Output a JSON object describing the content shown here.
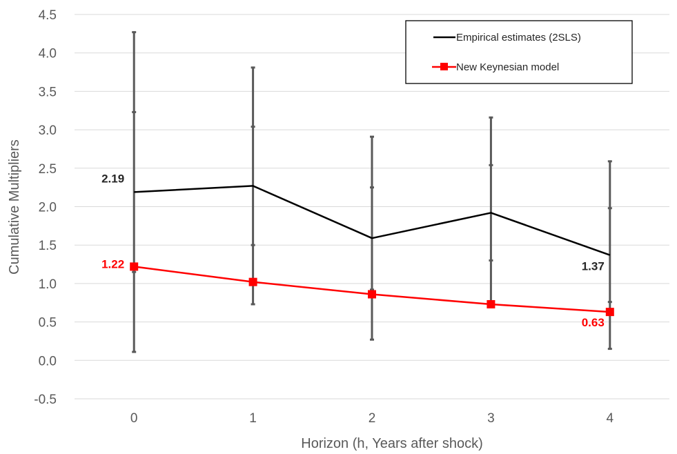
{
  "chart_data": {
    "type": "line",
    "title": "",
    "xlabel": "Horizon (h, Years after shock)",
    "ylabel": "Cumulative Multipliers",
    "categories": [
      "0",
      "1",
      "2",
      "3",
      "4"
    ],
    "ylim": [
      -0.5,
      4.5
    ],
    "ytick_labels": [
      "-0.5",
      "0.0",
      "0.5",
      "1.0",
      "1.5",
      "2.0",
      "2.5",
      "3.0",
      "3.5",
      "4.0",
      "4.5"
    ],
    "grid": true,
    "legend_position": "top-right",
    "series": [
      {
        "name": "Empirical estimates (2SLS)",
        "color": "#000000",
        "marker": "none",
        "values": [
          2.19,
          2.27,
          1.59,
          1.92,
          1.37
        ],
        "error_bars": {
          "outer_low": [
            0.11,
            0.73,
            0.27,
            0.69,
            0.15
          ],
          "outer_high": [
            4.27,
            3.81,
            2.91,
            3.16,
            2.59
          ],
          "inner_low": [
            1.15,
            1.5,
            0.92,
            1.3,
            0.76
          ],
          "inner_high": [
            3.23,
            3.04,
            2.25,
            2.54,
            1.98
          ],
          "color": "#595959"
        }
      },
      {
        "name": "New Keynesian model",
        "color": "#ff0000",
        "marker": "square",
        "values": [
          1.22,
          1.02,
          0.86,
          0.73,
          0.63
        ]
      }
    ],
    "data_labels": [
      {
        "series": 0,
        "index": 0,
        "text": "2.19",
        "color": "#262626"
      },
      {
        "series": 0,
        "index": 4,
        "text": "1.37",
        "color": "#262626"
      },
      {
        "series": 1,
        "index": 0,
        "text": "1.22",
        "color": "#ff0000"
      },
      {
        "series": 1,
        "index": 4,
        "text": "0.63",
        "color": "#ff0000"
      }
    ]
  }
}
